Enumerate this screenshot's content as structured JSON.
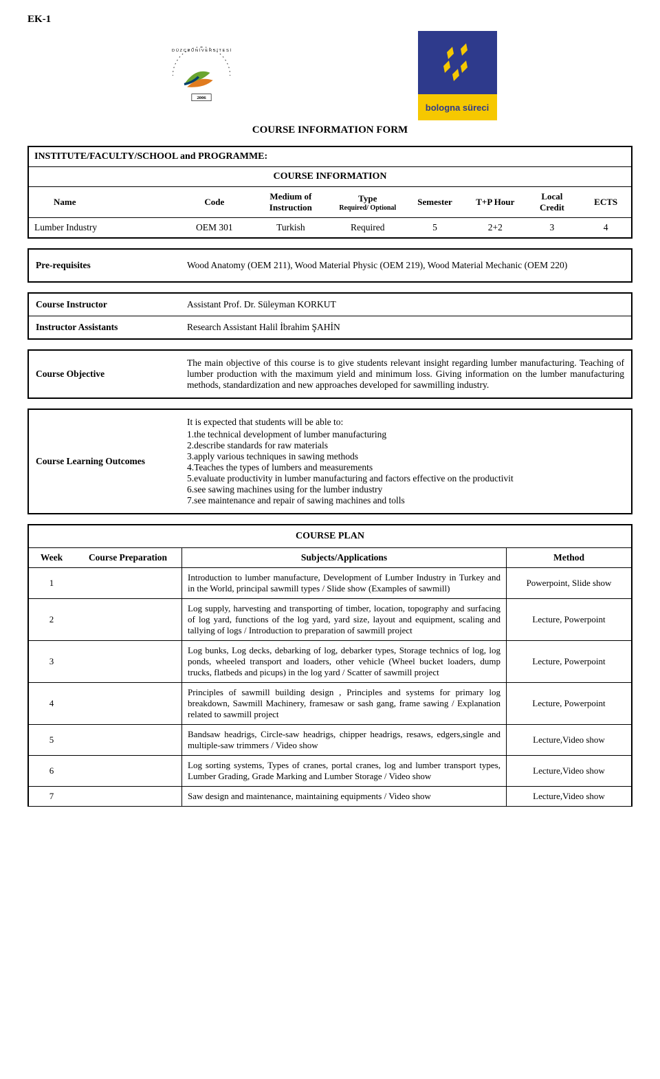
{
  "top_label": "EK-1",
  "logos": {
    "duzce_text": "DÜZCE ÜNİVERSİTESİ",
    "duzce_year": "2006",
    "bologna_text": "bologna süreci"
  },
  "form_title": "COURSE INFORMATION FORM",
  "institute_line": "INSTITUTE/FACULTY/SCHOOL and PROGRAMME:",
  "course_info_heading": "COURSE INFORMATION",
  "info_columns": {
    "name": "Name",
    "code": "Code",
    "medium": "Medium of Instruction",
    "type": "Type",
    "type_sub": "Required/ Optional",
    "semester": "Semester",
    "hour": "T+P Hour",
    "credit": "Local Credit",
    "ects": "ECTS"
  },
  "info_values": {
    "name": "Lumber Industry",
    "code": "OEM 301",
    "medium": "Turkish",
    "type": "Required",
    "semester": "5",
    "hour": "2+2",
    "credit": "3",
    "ects": "4"
  },
  "prereq": {
    "label": "Pre-requisites",
    "value": "Wood Anatomy (OEM 211), Wood Material Physic (OEM 219), Wood Material Mechanic (OEM 220)"
  },
  "instructor": {
    "label1": "Course Instructor",
    "value1": "Assistant Prof. Dr. Süleyman KORKUT",
    "label2": "Instructor Assistants",
    "value2": "Research Assistant Halil İbrahim ŞAHİN"
  },
  "objective": {
    "label": "Course Objective",
    "value": "The main objective of this course is to give students relevant insight regarding lumber manufacturing. Teaching of lumber production with the maximum yield and minimum loss. Giving information on the lumber manufacturing methods, standardization and new approaches developed for sawmilling industry."
  },
  "outcomes": {
    "label": "Course Learning Outcomes",
    "intro": "It is expected that students will be able to:",
    "items": [
      "1.the technical development of lumber manufacturing",
      "2.describe standards for raw materials",
      "3.apply various techniques in sawing methods",
      "4.Teaches the types of lumbers and measurements",
      "5.evaluate productivity in lumber manufacturing and factors effective on the productivit",
      "6.see sawing machines using for the lumber industry",
      "7.see maintenance and repair of sawing machines and tolls"
    ]
  },
  "plan": {
    "heading": "COURSE PLAN",
    "columns": {
      "week": "Week",
      "prep": "Course Preparation",
      "subjects": "Subjects/Applications",
      "method": "Method"
    },
    "rows": [
      {
        "week": "1",
        "prep": "",
        "subject": "Introduction to lumber manufacture, Development of Lumber Industry in Turkey and in the World, principal sawmill types / Slide show (Examples of sawmill)",
        "method": "Powerpoint, Slide show"
      },
      {
        "week": "2",
        "prep": "",
        "subject": "Log supply, harvesting and transporting of timber, location, topography and surfacing of log yard, functions of the log yard, yard size, layout and equipment, scaling and tallying of logs / Introduction to preparation of sawmill project",
        "method": "Lecture, Powerpoint"
      },
      {
        "week": "3",
        "prep": "",
        "subject": "Log bunks, Log decks, debarking of log, debarker types, Storage technics of log, log ponds, wheeled transport and loaders, other vehicle (Wheel bucket loaders, dump trucks, flatbeds and picups) in the log yard / Scatter of sawmill project",
        "method": "Lecture, Powerpoint"
      },
      {
        "week": "4",
        "prep": "",
        "subject": "Principles of sawmill building design , Principles and systems for primary log breakdown, Sawmill Machinery, framesaw or sash gang, frame sawing / Explanation related to sawmill project",
        "method": "Lecture, Powerpoint"
      },
      {
        "week": "5",
        "prep": "",
        "subject": "Bandsaw headrigs, Circle-saw headrigs, chipper headrigs, resaws, edgers,single and multiple-saw trimmers / Video show",
        "method": "Lecture,Video show"
      },
      {
        "week": "6",
        "prep": "",
        "subject": "Log sorting systems, Types of cranes, portal cranes, log and lumber transport types, Lumber Grading, Grade Marking and Lumber Storage / Video show",
        "method": "Lecture,Video show"
      },
      {
        "week": "7",
        "prep": "",
        "subject": "Saw design and maintenance, maintaining equipments / Video show",
        "method": "Lecture,Video show"
      }
    ]
  },
  "colors": {
    "border": "#000000",
    "bologna_blue": "#2e3a8c",
    "bologna_yellow": "#f6c800",
    "duzce_green": "#6aa52f",
    "duzce_orange": "#e07b1f"
  }
}
